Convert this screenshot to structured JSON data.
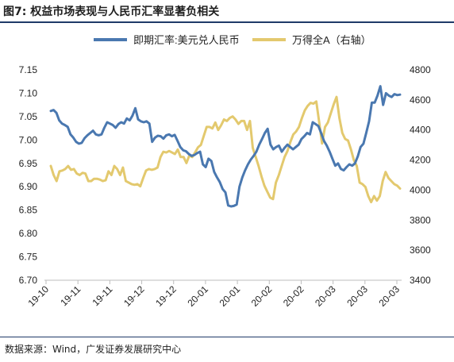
{
  "figure": {
    "title": "图7: 权益市场表现与人民币汇率显著负相关",
    "source": "数据来源：Wind，广发证券发展研究中心"
  },
  "chart_data": {
    "type": "line",
    "title": "",
    "xlabel": "",
    "ylabel": "",
    "legend_position": "top-center",
    "x_ticks": [
      "19-10",
      "19-11",
      "19-11",
      "19-12",
      "19-12",
      "20-01",
      "20-01",
      "20-02",
      "20-02",
      "20-03",
      "20-03",
      "20-03"
    ],
    "y_left": {
      "lim": [
        6.7,
        7.15
      ],
      "ticks": [
        "6.70",
        "6.75",
        "6.80",
        "6.85",
        "6.90",
        "6.95",
        "7.00",
        "7.05",
        "7.10",
        "7.15"
      ]
    },
    "y_right": {
      "lim": [
        3400,
        4800
      ],
      "ticks": [
        "3400",
        "3600",
        "3800",
        "4000",
        "4200",
        "4400",
        "4600",
        "4800"
      ]
    },
    "series": [
      {
        "name": "即期汇率:美元兑人民币",
        "axis": "left",
        "color": "#4a78b0",
        "values": [
          7.062,
          7.064,
          7.058,
          7.042,
          7.035,
          7.032,
          7.028,
          7.012,
          7.005,
          6.996,
          6.992,
          6.994,
          7.004,
          7.01,
          7.015,
          7.02,
          7.012,
          7.01,
          7.012,
          7.026,
          7.038,
          7.035,
          7.032,
          7.026,
          7.034,
          7.038,
          7.035,
          7.046,
          7.042,
          7.052,
          7.068,
          7.044,
          7.04,
          7.038,
          7.04,
          7.035,
          6.996,
          7.005,
          7.009,
          7.008,
          7.003,
          7.01,
          7.012,
          7.008,
          7.011,
          6.998,
          6.985,
          6.978,
          6.976,
          6.97,
          6.966,
          6.968,
          6.972,
          6.975,
          6.948,
          6.942,
          6.96,
          6.955,
          6.932,
          6.92,
          6.91,
          6.895,
          6.888,
          6.86,
          6.858,
          6.859,
          6.862,
          6.9,
          6.92,
          6.935,
          6.948,
          6.958,
          6.966,
          6.975,
          6.99,
          7.002,
          7.015,
          7.024,
          6.99,
          6.98,
          6.985,
          6.988,
          6.975,
          6.983,
          6.99,
          6.985,
          6.98,
          6.985,
          6.99,
          7.002,
          7.008,
          7.015,
          7.012,
          7.038,
          7.034,
          7.03,
          7.015,
          6.998,
          6.988,
          6.975,
          6.96,
          6.945,
          6.95,
          6.938,
          6.935,
          6.942,
          6.948,
          6.945,
          6.95,
          6.965,
          6.985,
          6.992,
          7.015,
          7.04,
          7.08,
          7.08,
          7.095,
          7.115,
          7.075,
          7.1,
          7.095,
          7.092,
          7.098,
          7.096,
          7.097
        ]
      },
      {
        "name": "万得全A（右轴）",
        "axis": "right",
        "color": "#e3c96e",
        "values": [
          4160,
          4100,
          4060,
          4125,
          4130,
          4140,
          4160,
          4135,
          4140,
          4110,
          4100,
          4115,
          4110,
          4060,
          4060,
          4075,
          4075,
          4070,
          4060,
          4065,
          4125,
          4100,
          4160,
          4140,
          4100,
          4150,
          4060,
          4050,
          4040,
          4035,
          4040,
          4025,
          4080,
          4130,
          4140,
          4135,
          4140,
          4150,
          4220,
          4255,
          4250,
          4260,
          4250,
          4240,
          4270,
          4220,
          4220,
          4180,
          4230,
          4220,
          4250,
          4285,
          4300,
          4360,
          4420,
          4420,
          4410,
          4450,
          4400,
          4430,
          4470,
          4460,
          4480,
          4490,
          4470,
          4440,
          4460,
          4460,
          4400,
          4460,
          4280,
          4220,
          4160,
          4090,
          4030,
          3990,
          3950,
          3940,
          4050,
          4100,
          4160,
          4220,
          4260,
          4320,
          4370,
          4390,
          4420,
          4480,
          4530,
          4560,
          4580,
          4575,
          4590,
          4450,
          4310,
          4420,
          4450,
          4510,
          4570,
          4620,
          4480,
          4380,
          4340,
          4330,
          4270,
          4200,
          4160,
          4050,
          4040,
          4020,
          3960,
          3920,
          3960,
          3930,
          3960,
          4060,
          4120,
          4080,
          4060,
          4040,
          4030,
          4010
        ]
      }
    ]
  }
}
